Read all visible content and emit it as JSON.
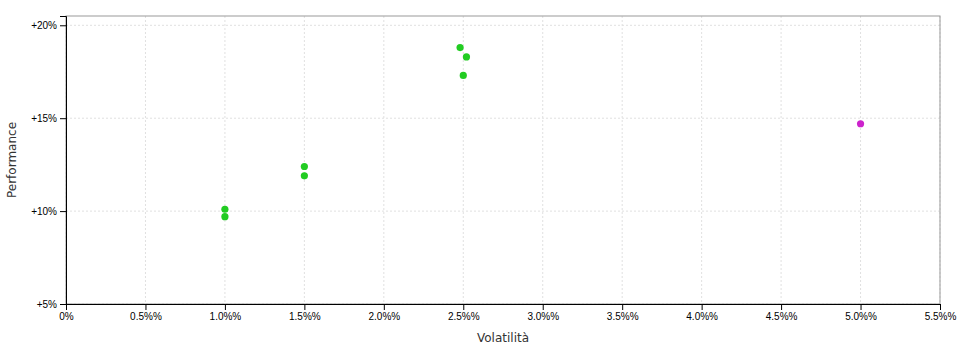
{
  "chart_data": {
    "type": "scatter",
    "xlabel": "Volatilità",
    "ylabel": "Performance",
    "xlim": [
      0,
      0.055
    ],
    "ylim": [
      0.05,
      0.205
    ],
    "xticks": [
      {
        "value": 0,
        "label": "0%"
      },
      {
        "value": 0.005,
        "label": "0.5%%"
      },
      {
        "value": 0.01,
        "label": "1.0%%"
      },
      {
        "value": 0.015,
        "label": "1.5%%"
      },
      {
        "value": 0.02,
        "label": "2.0%%"
      },
      {
        "value": 0.025,
        "label": "2.5%%"
      },
      {
        "value": 0.03,
        "label": "3.0%%"
      },
      {
        "value": 0.035,
        "label": "3.5%%"
      },
      {
        "value": 0.04,
        "label": "4.0%%"
      },
      {
        "value": 0.045,
        "label": "4.5%%"
      },
      {
        "value": 0.05,
        "label": "5.0%%"
      },
      {
        "value": 0.055,
        "label": "5.5%%"
      }
    ],
    "yticks": [
      {
        "value": 0.05,
        "label": "+5%"
      },
      {
        "value": 0.1,
        "label": "+10%"
      },
      {
        "value": 0.15,
        "label": "+15%"
      },
      {
        "value": 0.2,
        "label": "+20%"
      }
    ],
    "grid": true,
    "series": [
      {
        "color": "#22cc22",
        "marker": "circle",
        "x": [
          0.01,
          0.01,
          0.015,
          0.015,
          0.0248,
          0.0252,
          0.025
        ],
        "values": [
          0.101,
          0.097,
          0.124,
          0.119,
          0.188,
          0.183,
          0.173
        ]
      },
      {
        "color": "#cc22cc",
        "marker": "circle",
        "x": [
          0.05
        ],
        "values": [
          0.147
        ]
      }
    ]
  }
}
